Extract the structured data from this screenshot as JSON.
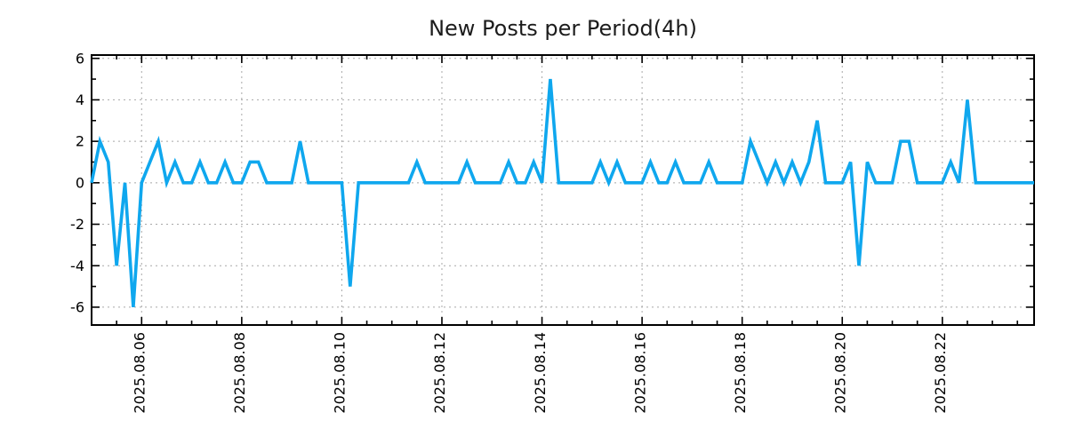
{
  "title": "New Posts per Period(4h)",
  "colors": {
    "line": "#0fa7ee",
    "grid": "#a8a8a8",
    "axis": "#000000",
    "background": "#ffffff",
    "title_text": "#1c1c1c"
  },
  "chart_data": {
    "type": "line",
    "title": "New Posts per Period(4h)",
    "xlabel": "",
    "ylabel": "",
    "legend": "none",
    "grid": true,
    "x_start": "2025-08-05 00:00",
    "x_step_hours": 4,
    "values": [
      0,
      2,
      1,
      -4,
      0,
      -6,
      0,
      1,
      2,
      0,
      1,
      0,
      0,
      1,
      0,
      0,
      1,
      0,
      0,
      1,
      1,
      0,
      0,
      0,
      0,
      2,
      0,
      0,
      0,
      0,
      0,
      -5,
      0,
      0,
      0,
      0,
      0,
      0,
      0,
      1,
      0,
      0,
      0,
      0,
      0,
      1,
      0,
      0,
      0,
      0,
      1,
      0,
      0,
      1,
      0,
      5,
      0,
      0,
      0,
      0,
      0,
      1,
      0,
      1,
      0,
      0,
      0,
      1,
      0,
      0,
      1,
      0,
      0,
      0,
      1,
      0,
      0,
      0,
      0,
      2,
      1,
      0,
      1,
      0,
      1,
      0,
      1,
      3,
      0,
      0,
      0,
      1,
      -4,
      1,
      0,
      0,
      0,
      2,
      2,
      0,
      0,
      0,
      0,
      1,
      0,
      4,
      0,
      0,
      0,
      0,
      0,
      0,
      0,
      0
    ],
    "x_tick_labels": [
      "2025.08.06",
      "2025.08.08",
      "2025.08.10",
      "2025.08.12",
      "2025.08.14",
      "2025.08.16",
      "2025.08.18",
      "2025.08.20",
      "2025.08.22"
    ],
    "x_tick_indices": [
      6,
      18,
      30,
      42,
      54,
      66,
      78,
      90,
      102
    ],
    "x_minor_tick_every_points": 3,
    "y_tick_labels": [
      "-6",
      "-4",
      "-2",
      "0",
      "2",
      "4",
      "6"
    ],
    "y_ticks": [
      -6,
      -4,
      -2,
      0,
      2,
      4,
      6
    ],
    "y_minor_ticks": [
      -5,
      -3,
      -1,
      1,
      3,
      5
    ],
    "ylim": [
      -6.86,
      6.16
    ]
  }
}
